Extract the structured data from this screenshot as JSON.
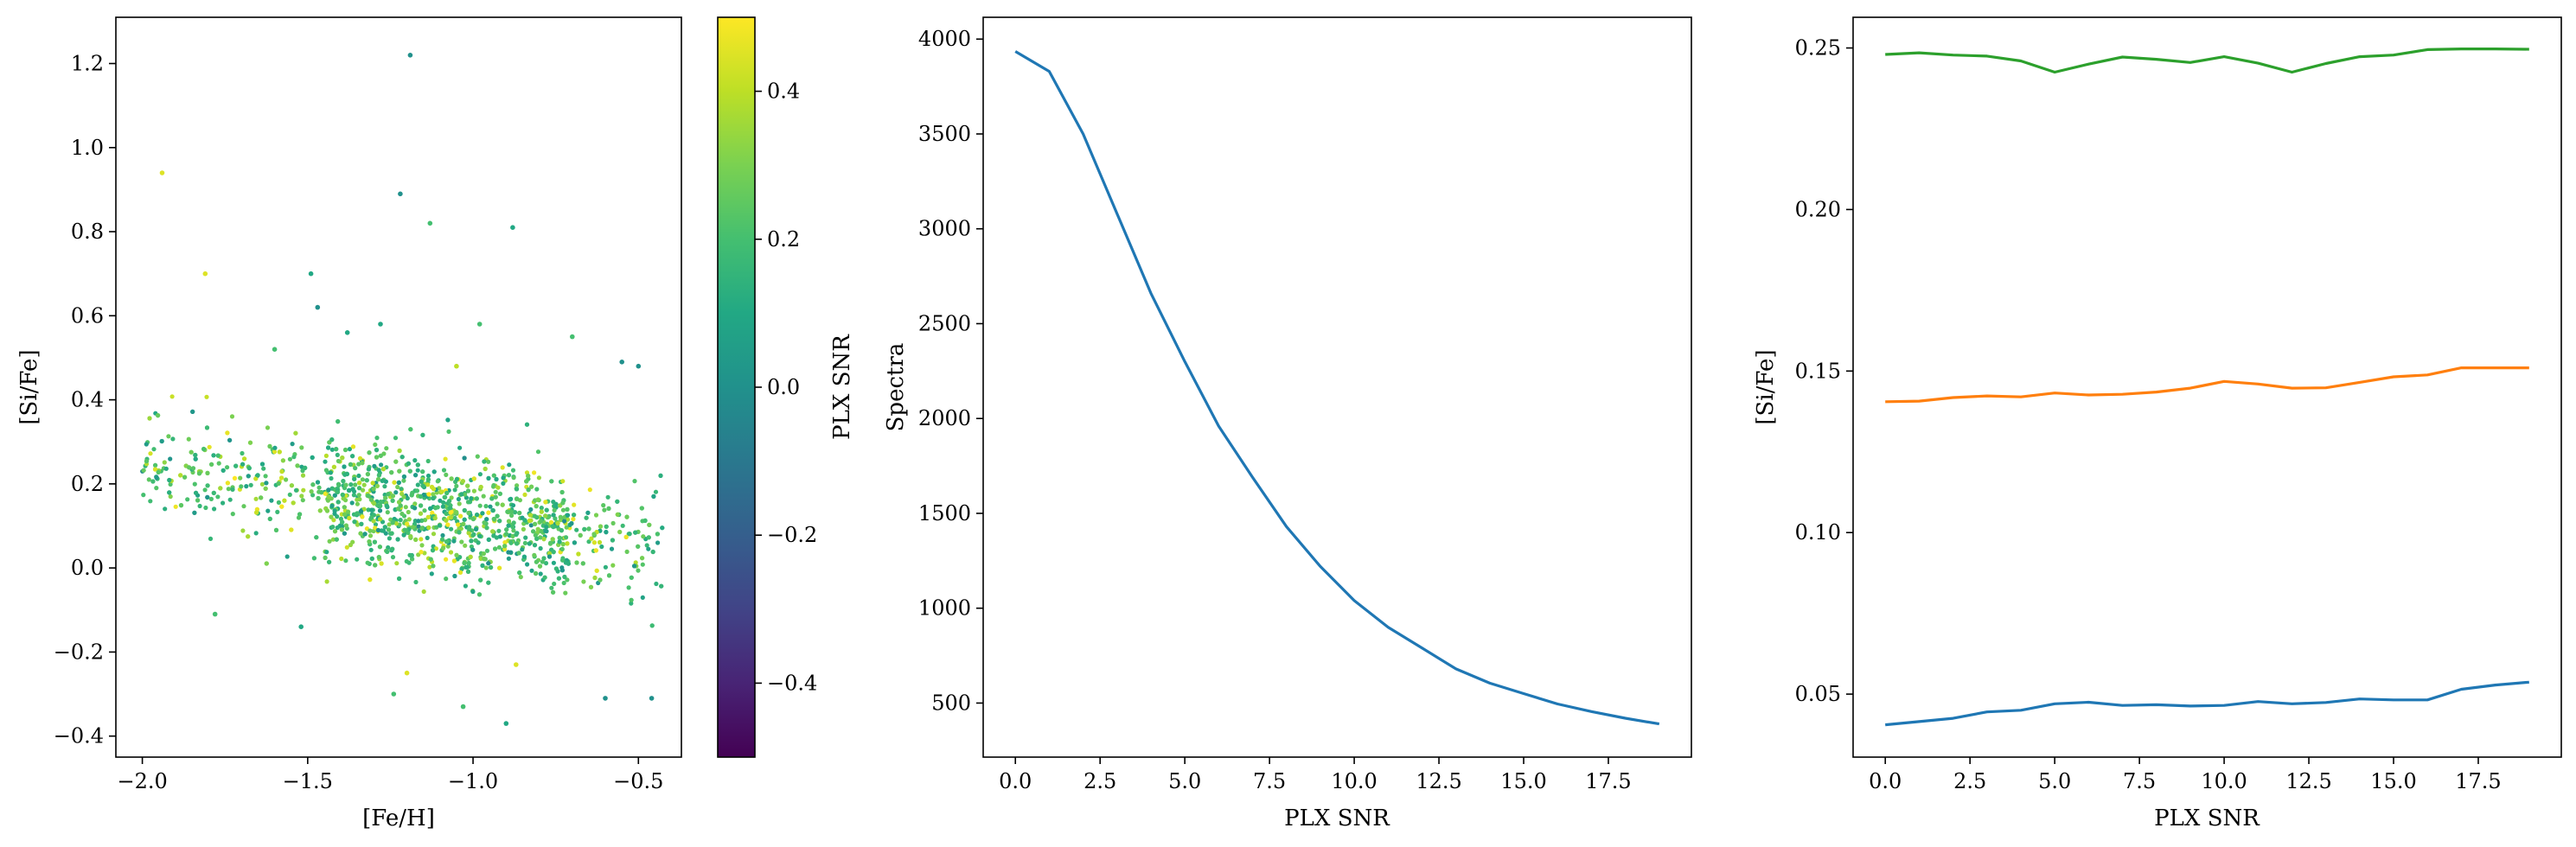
{
  "chart_data": [
    {
      "type": "scatter",
      "xlabel": "[Fe/H]",
      "ylabel": "[Si/Fe]",
      "xlim": [
        -2.08,
        -0.37
      ],
      "ylim": [
        -0.45,
        1.31
      ],
      "xticks": [
        -2.0,
        -1.5,
        -1.0,
        -0.5
      ],
      "xtick_labels": [
        "−2.0",
        "−1.5",
        "−1.0",
        "−0.5"
      ],
      "yticks": [
        -0.4,
        -0.2,
        0.0,
        0.2,
        0.4,
        0.6,
        0.8,
        1.0,
        1.2
      ],
      "ytick_labels": [
        "−0.4",
        "−0.2",
        "0.0",
        "0.2",
        "0.4",
        "0.6",
        "0.8",
        "1.0",
        "1.2"
      ],
      "colormap": "viridis",
      "colorbar": {
        "label": "PLX SNR",
        "range": [
          -0.5,
          0.5
        ],
        "ticks": [
          -0.4,
          -0.2,
          0.0,
          0.2,
          0.4
        ],
        "tick_labels": [
          "−0.4",
          "−0.2",
          "0.0",
          "0.2",
          "0.4"
        ]
      },
      "trend": {
        "x": [
          -2.0,
          -1.5,
          -1.0,
          -0.45
        ],
        "y": [
          0.25,
          0.18,
          0.12,
          0.05
        ],
        "spread": 0.1,
        "color_center": 0.2,
        "color_spread": 0.12
      },
      "points": [
        {
          "x": -1.19,
          "y": 1.22,
          "c": 0.0
        },
        {
          "x": -1.94,
          "y": 0.94,
          "c": 0.45
        },
        {
          "x": -1.22,
          "y": 0.89,
          "c": 0.0
        },
        {
          "x": -1.13,
          "y": 0.82,
          "c": 0.2
        },
        {
          "x": -0.88,
          "y": 0.81,
          "c": 0.1
        },
        {
          "x": -1.81,
          "y": 0.7,
          "c": 0.45
        },
        {
          "x": -1.49,
          "y": 0.7,
          "c": 0.1
        },
        {
          "x": -1.47,
          "y": 0.62,
          "c": 0.0
        },
        {
          "x": -1.28,
          "y": 0.58,
          "c": 0.1
        },
        {
          "x": -0.98,
          "y": 0.58,
          "c": 0.2
        },
        {
          "x": -1.2,
          "y": -0.25,
          "c": 0.45
        },
        {
          "x": -1.24,
          "y": -0.3,
          "c": 0.2
        },
        {
          "x": -1.03,
          "y": -0.33,
          "c": 0.2
        },
        {
          "x": -0.9,
          "y": -0.37,
          "c": 0.1
        },
        {
          "x": -0.6,
          "y": -0.31,
          "c": 0.0
        },
        {
          "x": -0.46,
          "y": -0.31,
          "c": 0.0
        },
        {
          "x": -0.87,
          "y": -0.23,
          "c": 0.45
        },
        {
          "x": -1.78,
          "y": -0.11,
          "c": 0.2
        },
        {
          "x": -1.52,
          "y": -0.14,
          "c": 0.1
        },
        {
          "x": -0.55,
          "y": 0.49,
          "c": 0.0
        },
        {
          "x": -0.5,
          "y": 0.48,
          "c": 0.0
        },
        {
          "x": -1.6,
          "y": 0.52,
          "c": 0.2
        },
        {
          "x": -1.38,
          "y": 0.56,
          "c": 0.1
        },
        {
          "x": -1.05,
          "y": 0.48,
          "c": 0.4
        },
        {
          "x": -0.7,
          "y": 0.55,
          "c": 0.2
        }
      ]
    },
    {
      "type": "line",
      "xlabel": "PLX SNR",
      "ylabel": "Spectra",
      "xlim": [
        -0.95,
        19.95
      ],
      "ylim": [
        215,
        4115
      ],
      "xticks": [
        0,
        2.5,
        5,
        7.5,
        10,
        12.5,
        15,
        17.5
      ],
      "xtick_labels": [
        "0.0",
        "2.5",
        "5.0",
        "7.5",
        "10.0",
        "12.5",
        "15.0",
        "17.5"
      ],
      "yticks": [
        500,
        1000,
        1500,
        2000,
        2500,
        3000,
        3500,
        4000
      ],
      "ytick_labels": [
        "500",
        "1000",
        "1500",
        "2000",
        "2500",
        "3000",
        "3500",
        "4000"
      ],
      "series": [
        {
          "color": "#1f77b4",
          "x": [
            0,
            1,
            2,
            3,
            4,
            5,
            6,
            7,
            8,
            9,
            10,
            11,
            12,
            13,
            14,
            15,
            16,
            17,
            18,
            19
          ],
          "y": [
            3935,
            3830,
            3500,
            3080,
            2660,
            2300,
            1960,
            1690,
            1430,
            1220,
            1040,
            900,
            790,
            680,
            605,
            550,
            495,
            455,
            420,
            390
          ]
        }
      ]
    },
    {
      "type": "line",
      "xlabel": "PLX SNR",
      "ylabel": "[Si/Fe]",
      "xlim": [
        -0.95,
        19.95
      ],
      "ylim": [
        0.0305,
        0.2595
      ],
      "xticks": [
        0,
        2.5,
        5,
        7.5,
        10,
        12.5,
        15,
        17.5
      ],
      "xtick_labels": [
        "0.0",
        "2.5",
        "5.0",
        "7.5",
        "10.0",
        "12.5",
        "15.0",
        "17.5"
      ],
      "yticks": [
        0.05,
        0.1,
        0.15,
        0.2,
        0.25
      ],
      "ytick_labels": [
        "0.05",
        "0.10",
        "0.15",
        "0.20",
        "0.25"
      ],
      "series": [
        {
          "color": "#1f77b4",
          "x": [
            0,
            1,
            2,
            3,
            4,
            5,
            6,
            7,
            8,
            9,
            10,
            11,
            12,
            13,
            14,
            15,
            16,
            17,
            18,
            19
          ],
          "y": [
            0.0405,
            0.0415,
            0.0425,
            0.0445,
            0.045,
            0.047,
            0.0475,
            0.0465,
            0.0467,
            0.0463,
            0.0465,
            0.0477,
            0.047,
            0.0474,
            0.0485,
            0.0482,
            0.0482,
            0.0515,
            0.0528,
            0.0537
          ]
        },
        {
          "color": "#ff7f0e",
          "x": [
            0,
            1,
            2,
            3,
            4,
            5,
            6,
            7,
            8,
            9,
            10,
            11,
            12,
            13,
            14,
            15,
            16,
            17,
            18,
            19
          ],
          "y": [
            0.1405,
            0.1407,
            0.1418,
            0.1423,
            0.142,
            0.1432,
            0.1426,
            0.1428,
            0.1435,
            0.1447,
            0.1468,
            0.146,
            0.1447,
            0.1448,
            0.1465,
            0.1482,
            0.1488,
            0.151,
            0.151,
            0.151
          ]
        },
        {
          "color": "#2ca02c",
          "x": [
            0,
            1,
            2,
            3,
            4,
            5,
            6,
            7,
            8,
            9,
            10,
            11,
            12,
            13,
            14,
            15,
            16,
            17,
            18,
            19
          ],
          "y": [
            0.248,
            0.2485,
            0.2478,
            0.2475,
            0.246,
            0.2425,
            0.245,
            0.2472,
            0.2465,
            0.2455,
            0.2473,
            0.2453,
            0.2425,
            0.2452,
            0.2473,
            0.2478,
            0.2495,
            0.2497,
            0.2497,
            0.2496
          ]
        }
      ]
    }
  ]
}
